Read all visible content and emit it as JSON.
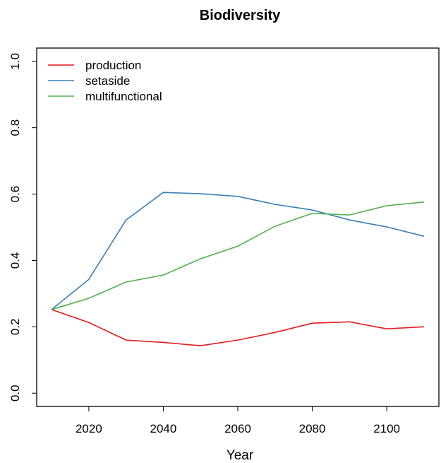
{
  "chart_data": {
    "type": "line",
    "title": "Biodiversity",
    "x_label": "Year",
    "x": [
      2010,
      2020,
      2030,
      2040,
      2050,
      2060,
      2070,
      2080,
      2090,
      2100,
      2110
    ],
    "series": [
      {
        "name": "production",
        "color": "#e41a1c",
        "values": [
          0.252,
          0.213,
          0.16,
          0.153,
          0.143,
          0.16,
          0.183,
          0.211,
          0.215,
          0.194,
          0.2
        ]
      },
      {
        "name": "setaside",
        "color": "#377eb8",
        "values": [
          0.252,
          0.343,
          0.522,
          0.605,
          0.601,
          0.593,
          0.569,
          0.552,
          0.522,
          0.501,
          0.473
        ]
      },
      {
        "name": "multifunctional",
        "color": "#4daf4a",
        "values": [
          0.252,
          0.286,
          0.335,
          0.356,
          0.405,
          0.443,
          0.503,
          0.542,
          0.537,
          0.565,
          0.576
        ]
      }
    ],
    "xlim": [
      2006,
      2114
    ],
    "xticks": [
      2020,
      2040,
      2060,
      2080,
      2100
    ],
    "ylim": [
      -0.04,
      1.04
    ],
    "yticks": [
      {
        "value": 0,
        "label": "0.0"
      },
      {
        "value": 0.2,
        "label": "0.2"
      },
      {
        "value": 0.4,
        "label": "0.4"
      },
      {
        "value": 0.6,
        "label": "0.6"
      },
      {
        "value": 0.8,
        "label": "0.8"
      },
      {
        "value": 1,
        "label": "1.0"
      }
    ],
    "legend": "top-left",
    "grid": false
  }
}
